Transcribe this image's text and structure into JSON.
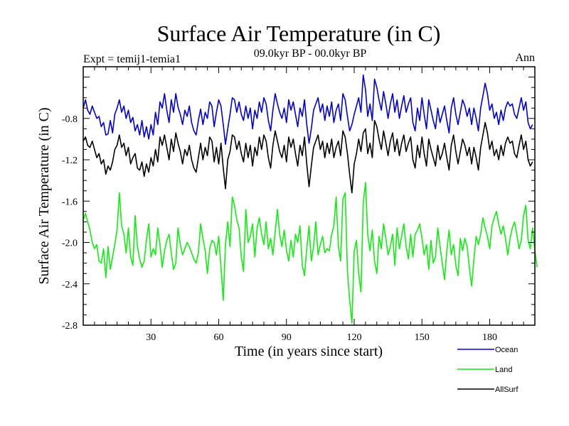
{
  "chart_data": {
    "type": "line",
    "title": "Surface Air Temperature (in C)",
    "subtitle": "09.0kyr BP - 00.0kyr BP",
    "experiment": "Expt = temij1-temia1",
    "season": "Ann",
    "xlabel": "Time (in years since start)",
    "ylabel": "Surface Air Temperature (in C)",
    "xlim": [
      0,
      200
    ],
    "ylim": [
      -2.8,
      -0.3
    ],
    "xticks": [
      30,
      60,
      90,
      120,
      150,
      180
    ],
    "yticks": [
      -2.8,
      -2.4,
      -2.0,
      -1.6,
      -1.2,
      -0.8
    ],
    "ytick_labels": [
      "-2.8",
      "-2.4",
      "-2.0",
      "-1.6",
      "-1.2",
      "-0.8"
    ],
    "grid": false,
    "legend_position": "bottom-right",
    "series": [
      {
        "name": "Ocean",
        "color": "#0000dd",
        "values": [
          -0.7,
          -0.62,
          -0.72,
          -0.76,
          -0.68,
          -0.74,
          -0.8,
          -0.78,
          -0.88,
          -0.84,
          -0.96,
          -0.95,
          -0.82,
          -0.94,
          -0.76,
          -0.7,
          -0.62,
          -0.74,
          -0.68,
          -0.8,
          -0.72,
          -0.84,
          -0.79,
          -0.92,
          -0.86,
          -0.96,
          -0.82,
          -0.98,
          -0.88,
          -1.0,
          -0.86,
          -0.96,
          -0.74,
          -0.86,
          -0.64,
          -0.7,
          -0.56,
          -0.72,
          -0.84,
          -0.62,
          -0.74,
          -0.56,
          -0.69,
          -0.76,
          -0.86,
          -0.72,
          -0.78,
          -0.68,
          -0.84,
          -0.92,
          -0.96,
          -0.82,
          -0.71,
          -0.86,
          -0.74,
          -0.8,
          -0.64,
          -0.68,
          -0.88,
          -0.74,
          -0.62,
          -0.68,
          -0.86,
          -1.05,
          -0.9,
          -0.76,
          -0.6,
          -0.62,
          -0.74,
          -0.64,
          -0.76,
          -0.82,
          -0.68,
          -0.8,
          -0.7,
          -0.9,
          -0.72,
          -0.8,
          -0.64,
          -0.74,
          -0.6,
          -0.66,
          -0.82,
          -0.92,
          -0.72,
          -0.56,
          -0.66,
          -0.74,
          -0.8,
          -0.7,
          -0.84,
          -0.62,
          -0.72,
          -0.64,
          -0.76,
          -0.88,
          -0.7,
          -0.78,
          -0.62,
          -0.86,
          -1.04,
          -0.9,
          -0.72,
          -0.66,
          -0.6,
          -0.74,
          -0.66,
          -0.82,
          -0.68,
          -0.78,
          -0.64,
          -0.84,
          -0.72,
          -0.66,
          -0.82,
          -0.56,
          -0.62,
          -0.78,
          -0.92,
          -0.86,
          -0.76,
          -0.68,
          -0.6,
          -0.74,
          -0.38,
          -0.52,
          -0.78,
          -0.66,
          -0.82,
          -0.42,
          -0.5,
          -0.62,
          -0.72,
          -0.54,
          -0.66,
          -0.8,
          -0.66,
          -0.56,
          -0.74,
          -0.62,
          -0.8,
          -0.68,
          -0.58,
          -0.74,
          -0.66,
          -0.6,
          -0.84,
          -0.92,
          -0.7,
          -0.82,
          -0.6,
          -0.76,
          -0.9,
          -0.62,
          -0.72,
          -0.82,
          -0.9,
          -0.7,
          -0.84,
          -0.76,
          -0.68,
          -0.82,
          -0.94,
          -0.7,
          -0.6,
          -0.76,
          -0.86,
          -0.74,
          -0.62,
          -0.68,
          -0.78,
          -0.7,
          -0.86,
          -0.7,
          -0.8,
          -0.92,
          -0.7,
          -0.58,
          -0.46,
          -0.56,
          -0.72,
          -0.66,
          -0.8,
          -0.74,
          -0.86,
          -0.72,
          -0.82,
          -0.7,
          -0.64,
          -0.68,
          -0.66,
          -0.76,
          -0.8,
          -0.7,
          -0.6,
          -0.72,
          -0.64,
          -0.84,
          -0.9,
          -0.86
        ]
      },
      {
        "name": "Land",
        "color": "#11ee11",
        "values": [
          -1.78,
          -1.72,
          -1.8,
          -1.88,
          -2.0,
          -2.06,
          -2.02,
          -2.18,
          -2.2,
          -2.06,
          -2.34,
          -2.04,
          -2.26,
          -2.14,
          -2.02,
          -1.88,
          -1.52,
          -1.84,
          -1.92,
          -2.1,
          -1.86,
          -2.14,
          -2.22,
          -1.74,
          -2.04,
          -2.16,
          -2.24,
          -2.18,
          -1.98,
          -1.82,
          -2.14,
          -2.06,
          -2.12,
          -1.86,
          -2.02,
          -2.24,
          -2.08,
          -1.98,
          -1.92,
          -2.1,
          -2.26,
          -2.2,
          -1.86,
          -2.02,
          -2.12,
          -2.06,
          -2.0,
          -2.04,
          -2.1,
          -2.16,
          -2.2,
          -2.1,
          -1.82,
          -1.96,
          -2.08,
          -2.3,
          -2.06,
          -1.98,
          -2.0,
          -2.12,
          -1.94,
          -2.24,
          -2.56,
          -2.02,
          -1.8,
          -2.04,
          -1.56,
          -1.64,
          -1.78,
          -1.86,
          -2.14,
          -2.28,
          -1.68,
          -2.0,
          -1.94,
          -1.82,
          -2.14,
          -1.86,
          -1.76,
          -1.92,
          -2.02,
          -1.8,
          -2.06,
          -1.96,
          -2.12,
          -1.9,
          -1.68,
          -1.92,
          -2.04,
          -1.88,
          -2.08,
          -2.18,
          -1.98,
          -2.14,
          -1.92,
          -2.0,
          -1.84,
          -2.22,
          -2.32,
          -2.06,
          -1.84,
          -2.18,
          -2.04,
          -1.8,
          -2.12,
          -2.02,
          -1.94,
          -2.1,
          -2.06,
          -2.08,
          -1.92,
          -1.84,
          -1.56,
          -2.04,
          -2.18,
          -1.58,
          -1.52,
          -2.28,
          -2.56,
          -2.78,
          -2.08,
          -1.98,
          -2.3,
          -2.48,
          -1.62,
          -1.42,
          -1.92,
          -2.08,
          -1.88,
          -2.18,
          -2.3,
          -1.94,
          -2.06,
          -1.82,
          -1.96,
          -2.12,
          -2.04,
          -1.92,
          -2.22,
          -1.86,
          -2.06,
          -1.94,
          -1.82,
          -2.04,
          -2.16,
          -1.92,
          -2.14,
          -1.92,
          -1.88,
          -1.82,
          -1.96,
          -2.12,
          -2.02,
          -2.26,
          -1.98,
          -2.2,
          -2.14,
          -1.86,
          -2.04,
          -2.2,
          -2.36,
          -2.08,
          -1.88,
          -2.12,
          -2.02,
          -2.22,
          -2.32,
          -1.96,
          -2.08,
          -1.96,
          -2.04,
          -2.24,
          -2.42,
          -2.16,
          -1.94,
          -2.02,
          -1.92,
          -1.76,
          -1.86,
          -1.94,
          -2.06,
          -1.84,
          -1.76,
          -1.7,
          -1.82,
          -1.92,
          -1.84,
          -1.96,
          -2.12,
          -1.96,
          -1.86,
          -1.8,
          -1.92,
          -2.06,
          -1.98,
          -1.74,
          -1.64,
          -1.98,
          -2.06,
          -1.86,
          -2.08,
          -2.24
        ]
      },
      {
        "name": "AllSurf",
        "color": "#000000",
        "values": [
          -1.02,
          -0.98,
          -1.06,
          -1.08,
          -1.02,
          -1.1,
          -1.18,
          -1.14,
          -1.24,
          -1.2,
          -1.34,
          -1.26,
          -1.3,
          -1.22,
          -1.1,
          -1.06,
          -0.96,
          -1.08,
          -1.04,
          -1.16,
          -1.08,
          -1.24,
          -1.18,
          -1.14,
          -1.28,
          -1.3,
          -1.22,
          -1.36,
          -1.24,
          -1.32,
          -1.18,
          -1.26,
          -1.1,
          -1.22,
          -0.98,
          -1.06,
          -0.96,
          -1.08,
          -1.2,
          -1.0,
          -1.12,
          -0.94,
          -1.04,
          -1.12,
          -1.24,
          -1.1,
          -1.16,
          -1.06,
          -1.2,
          -1.28,
          -1.32,
          -1.18,
          -1.04,
          -1.2,
          -1.08,
          -1.16,
          -0.98,
          -1.02,
          -1.22,
          -1.08,
          -1.24,
          -1.04,
          -1.28,
          -1.48,
          -1.2,
          -1.12,
          -0.96,
          -0.98,
          -1.1,
          -1.02,
          -1.14,
          -1.22,
          -1.04,
          -1.18,
          -1.06,
          -1.26,
          -1.08,
          -1.16,
          -0.98,
          -1.1,
          -0.96,
          -1.02,
          -1.18,
          -1.28,
          -1.06,
          -0.92,
          -1.02,
          -1.12,
          -1.18,
          -1.06,
          -1.22,
          -0.98,
          -1.08,
          -1.0,
          -1.14,
          -1.26,
          -1.06,
          -1.16,
          -0.98,
          -1.24,
          -1.46,
          -1.26,
          -1.08,
          -1.02,
          -0.96,
          -1.1,
          -1.02,
          -1.18,
          -1.04,
          -1.14,
          -1.0,
          -1.18,
          -1.08,
          -1.02,
          -1.16,
          -0.92,
          -0.98,
          -1.14,
          -1.34,
          -1.52,
          -1.24,
          -1.14,
          -1.0,
          -1.12,
          -0.94,
          -0.9,
          -1.14,
          -1.04,
          -1.18,
          -0.82,
          -0.88,
          -1.0,
          -1.1,
          -0.92,
          -1.04,
          -1.16,
          -1.02,
          -0.94,
          -1.12,
          -1.0,
          -1.16,
          -1.04,
          -0.96,
          -1.12,
          -1.04,
          -0.98,
          -1.2,
          -1.28,
          -1.06,
          -1.18,
          -0.98,
          -1.14,
          -1.26,
          -1.0,
          -1.1,
          -1.18,
          -1.26,
          -1.06,
          -1.2,
          -1.14,
          -1.04,
          -1.18,
          -1.3,
          -1.06,
          -0.96,
          -1.12,
          -1.24,
          -1.12,
          -1.0,
          -1.06,
          -1.16,
          -1.08,
          -1.24,
          -1.08,
          -1.18,
          -1.3,
          -1.08,
          -0.96,
          -0.84,
          -0.94,
          -1.1,
          -1.02,
          -1.16,
          -1.1,
          -1.2,
          -1.06,
          -1.16,
          -1.04,
          -0.98,
          -1.04,
          -1.02,
          -1.14,
          -1.18,
          -1.06,
          -0.96,
          -1.1,
          -1.02,
          -1.2,
          -1.26,
          -1.22
        ]
      }
    ]
  }
}
